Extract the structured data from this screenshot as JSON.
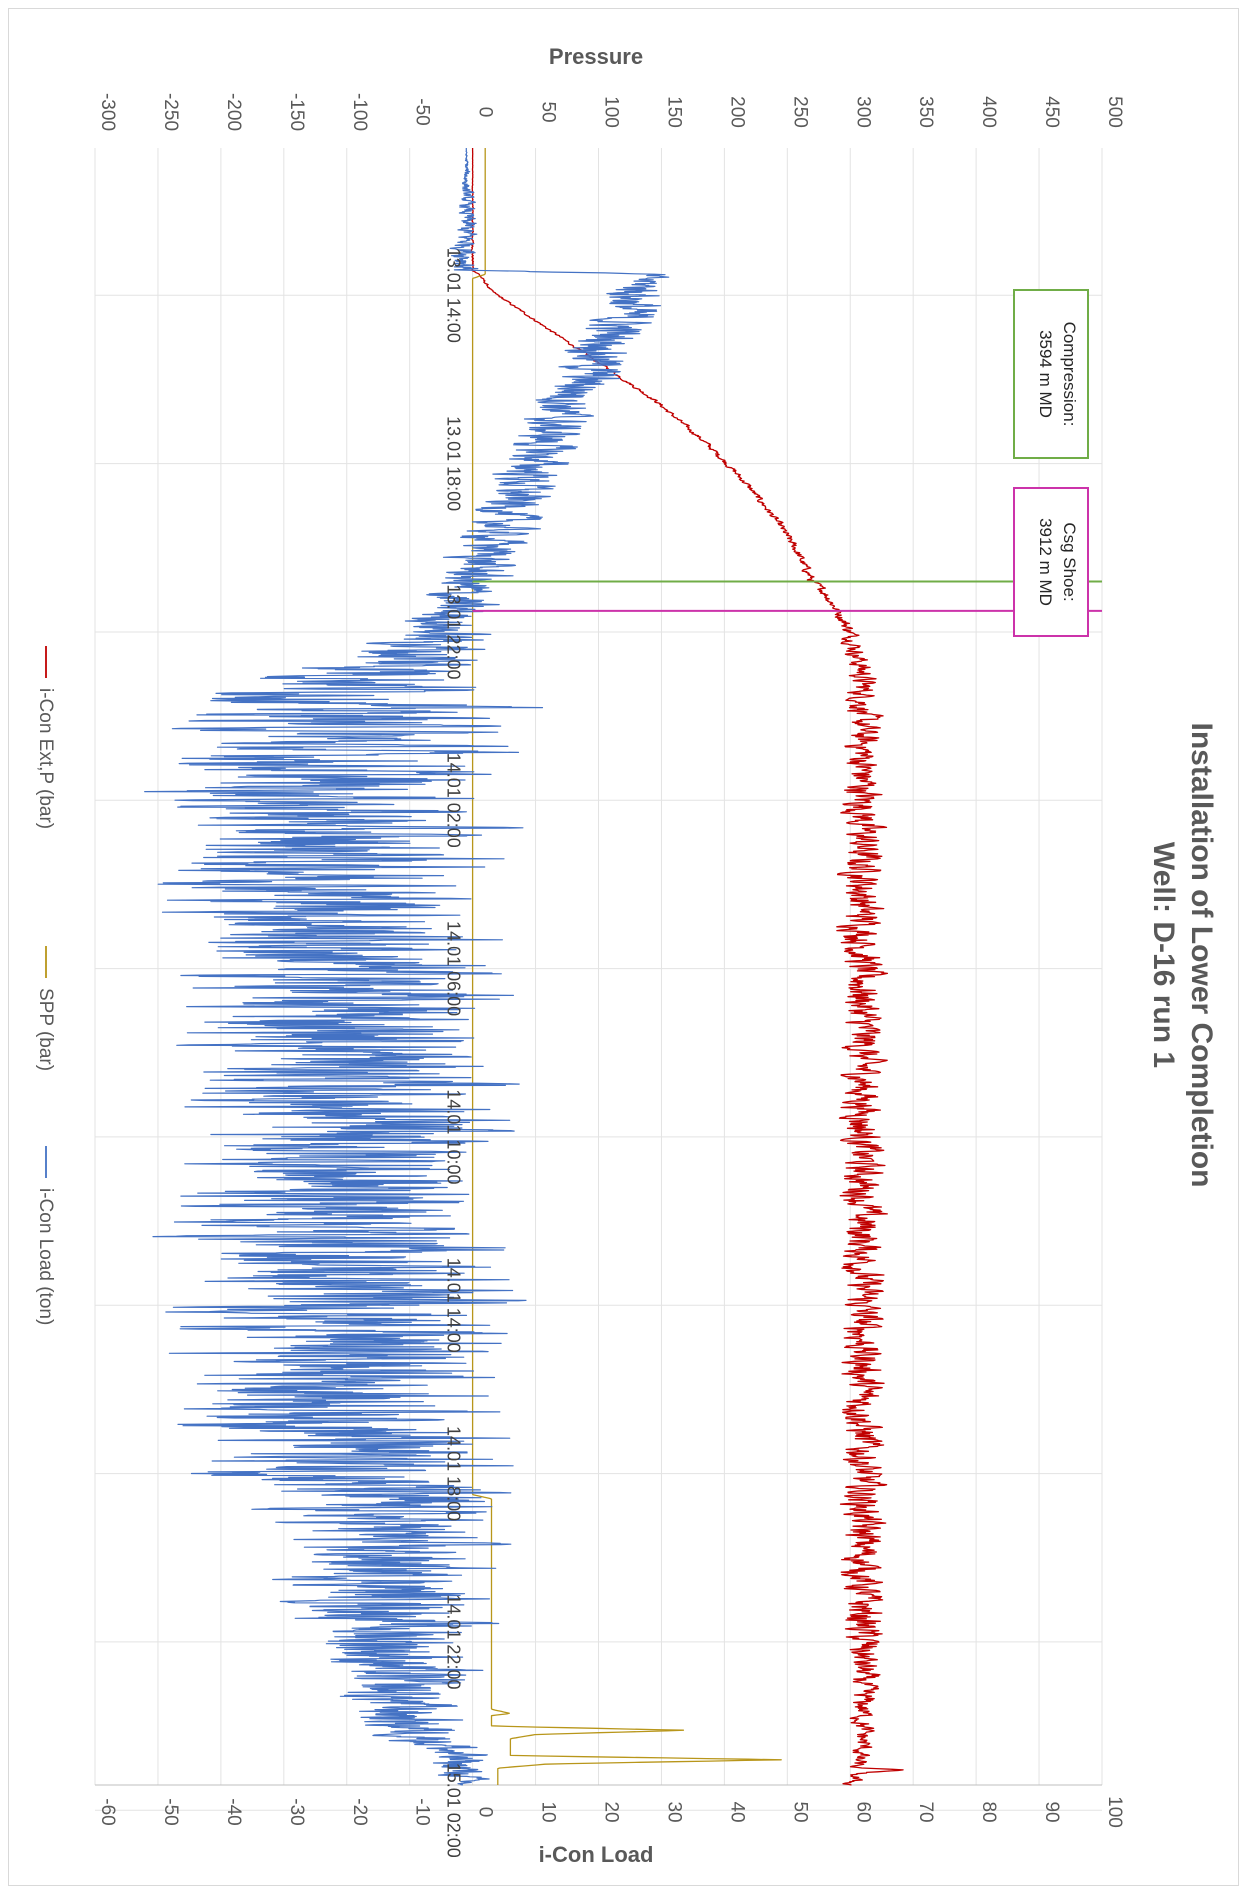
{
  "chart_data": {
    "type": "line",
    "title": "Installation of Lower Completion",
    "subtitle": "Well: D-16 run 1",
    "pressure_axis": {
      "label": "Pressure",
      "range": [
        -300,
        500
      ],
      "ticks": [
        "-300",
        "-250",
        "-200",
        "-150",
        "-100",
        "-50",
        "0",
        "50",
        "100",
        "150",
        "200",
        "250",
        "300",
        "350",
        "400",
        "450",
        "500"
      ]
    },
    "load_axis": {
      "label": "i-Con Load",
      "range": [
        -60,
        100
      ],
      "ticks": [
        "-60",
        "-50",
        "-40",
        "-30",
        "-20",
        "-10",
        "0",
        "10",
        "20",
        "30",
        "40",
        "50",
        "60",
        "70",
        "80",
        "90",
        "100"
      ]
    },
    "time_axis": {
      "range_hours": [
        -3.5,
        35.4
      ],
      "labels": [
        "13.01 14:00",
        "13.01 18:00",
        "13.01 22:00",
        "14.01 02:00",
        "14.01 06:00",
        "14.01 10:00",
        "14.01 14:00",
        "14.01 18:00",
        "14.01 22:00",
        "15.01 02:00"
      ]
    },
    "grid": true,
    "legend_position": "left",
    "series": [
      {
        "name": "i-Con Ext,P (bar)",
        "color": "#c00000",
        "axis": "pressure",
        "points": [
          [
            -3.5,
            0
          ],
          [
            -2.0,
            0
          ],
          [
            -0.6,
            0
          ],
          [
            -0.5,
            5
          ],
          [
            -0.1,
            15
          ],
          [
            0.5,
            45
          ],
          [
            1.0,
            70
          ],
          [
            1.5,
            95
          ],
          [
            2.0,
            120
          ],
          [
            2.5,
            145
          ],
          [
            3.0,
            165
          ],
          [
            3.5,
            185
          ],
          [
            4.0,
            202
          ],
          [
            4.5,
            218
          ],
          [
            5.0,
            232
          ],
          [
            5.5,
            245
          ],
          [
            6.0,
            256
          ],
          [
            6.5,
            265
          ],
          [
            6.8,
            270
          ],
          [
            7.0,
            278
          ],
          [
            7.5,
            290
          ],
          [
            8.0,
            300
          ],
          [
            8.5,
            305
          ],
          [
            9.0,
            310
          ],
          [
            10.0,
            310
          ],
          [
            34.5,
            310
          ],
          [
            34.9,
            305
          ],
          [
            35.0,
            305
          ],
          [
            35.05,
            345
          ],
          [
            35.1,
            305
          ],
          [
            35.4,
            300
          ]
        ],
        "noise": [
          [
            -3.5,
            0
          ],
          [
            7.5,
            3
          ],
          [
            9.0,
            8
          ],
          [
            12.0,
            12
          ],
          [
            32.0,
            12
          ],
          [
            33.0,
            8
          ],
          [
            35.4,
            5
          ]
        ]
      },
      {
        "name": "SPP (bar)",
        "color": "#b8961a",
        "axis": "pressure",
        "points": [
          [
            -3.5,
            10
          ],
          [
            -0.5,
            10
          ],
          [
            -0.4,
            0
          ],
          [
            28.5,
            0
          ],
          [
            28.6,
            15
          ],
          [
            33.6,
            15
          ],
          [
            33.7,
            30
          ],
          [
            33.75,
            15
          ],
          [
            34.0,
            15
          ],
          [
            34.1,
            170
          ],
          [
            34.2,
            50
          ],
          [
            34.3,
            30
          ],
          [
            34.7,
            30
          ],
          [
            34.8,
            248
          ],
          [
            34.9,
            60
          ],
          [
            35.0,
            20
          ],
          [
            35.4,
            20
          ]
        ],
        "noise": [
          [
            -3.5,
            0
          ],
          [
            35.4,
            0
          ]
        ]
      },
      {
        "name": "i-Con Load (ton)",
        "color": "#4472c4",
        "axis": "load",
        "points": [
          [
            -3.5,
            -1
          ],
          [
            -0.6,
            -1
          ],
          [
            -0.5,
            28
          ],
          [
            0.0,
            26
          ],
          [
            1.0,
            22
          ],
          [
            2.0,
            18
          ],
          [
            3.0,
            13
          ],
          [
            4.0,
            10
          ],
          [
            5.0,
            6
          ],
          [
            6.0,
            3
          ],
          [
            6.5,
            1
          ],
          [
            7.0,
            -2
          ],
          [
            8.0,
            -5
          ],
          [
            8.8,
            -10
          ],
          [
            9.5,
            -18
          ],
          [
            10.5,
            -22
          ],
          [
            12.0,
            -24
          ],
          [
            14.0,
            -22
          ],
          [
            16.0,
            -21
          ],
          [
            18.0,
            -20
          ],
          [
            20.0,
            -20
          ],
          [
            22.0,
            -21
          ],
          [
            24.0,
            -19
          ],
          [
            26.0,
            -20
          ],
          [
            28.0,
            -18
          ],
          [
            29.0,
            -15
          ],
          [
            30.0,
            -14
          ],
          [
            31.0,
            -13
          ],
          [
            32.0,
            -12
          ],
          [
            33.0,
            -13
          ],
          [
            34.0,
            -10
          ],
          [
            34.5,
            -4
          ],
          [
            35.0,
            -2
          ],
          [
            35.4,
            -1
          ]
        ],
        "noise": [
          [
            -3.5,
            0
          ],
          [
            -0.5,
            2
          ],
          [
            0.0,
            4
          ],
          [
            6.0,
            4
          ],
          [
            8.0,
            5
          ],
          [
            9.0,
            14
          ],
          [
            10.0,
            18
          ],
          [
            28.0,
            18
          ],
          [
            29.0,
            12
          ],
          [
            32.0,
            10
          ],
          [
            34.0,
            6
          ],
          [
            35.4,
            2
          ]
        ]
      }
    ],
    "annotations": [
      {
        "lines": [
          "Compression:",
          "3594 m MD"
        ],
        "time_hours": 6.8,
        "color": "#70ad47"
      },
      {
        "lines": [
          "Csg Shoe:",
          "3912 m MD"
        ],
        "time_hours": 7.5,
        "color": "#cc33aa"
      }
    ]
  }
}
